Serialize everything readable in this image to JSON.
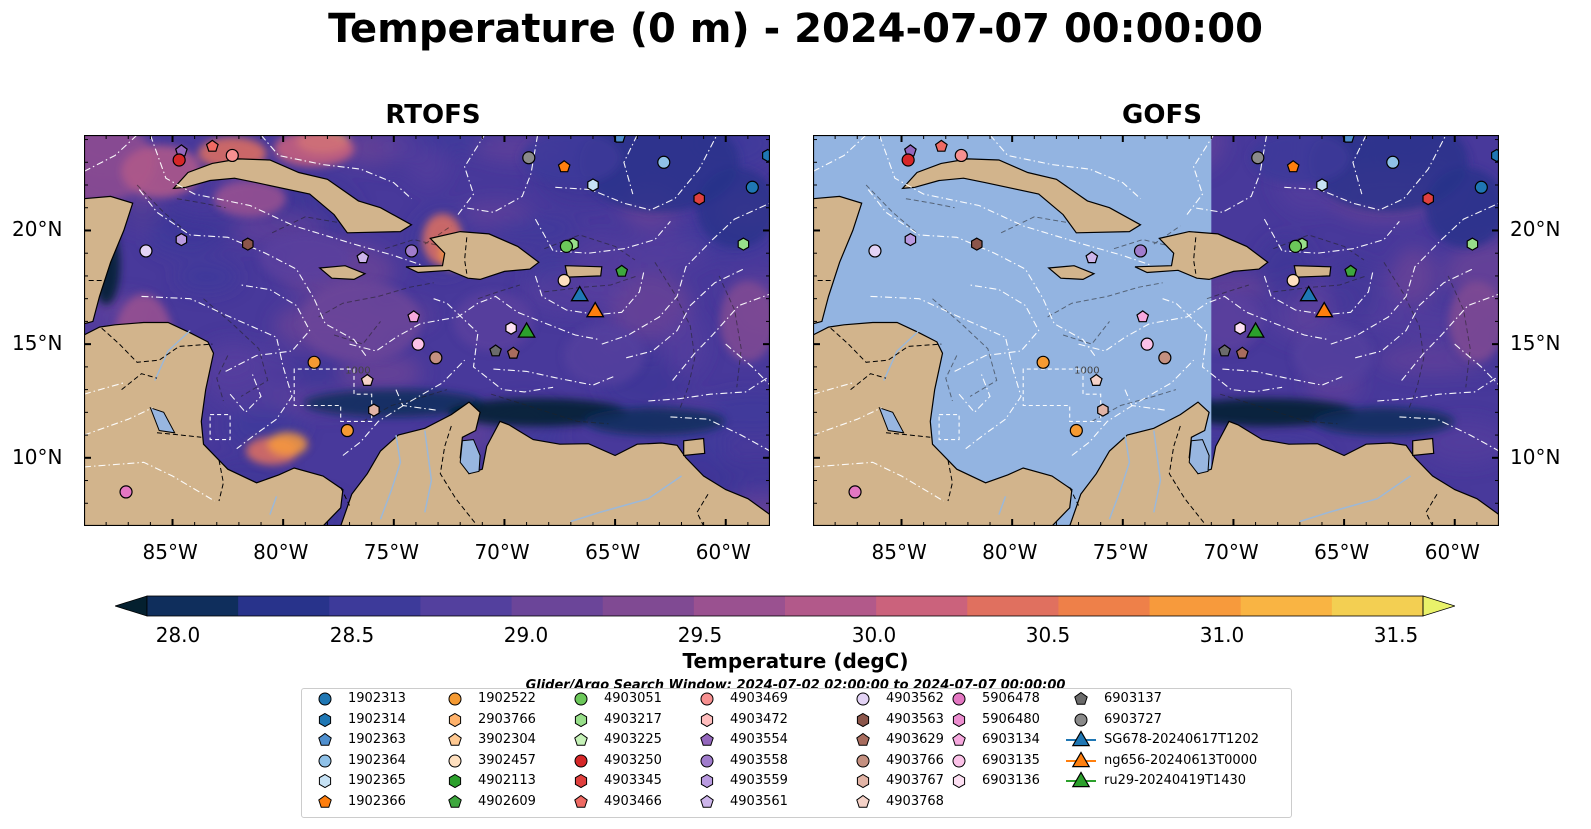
{
  "figure": {
    "suptitle": "Temperature (0 m) - 2024-07-07 00:00:00",
    "panels": [
      {
        "id": "rtofs",
        "title": "RTOFS"
      },
      {
        "id": "gofs",
        "title": "GOFS"
      }
    ],
    "lon_ticks": [
      "85°W",
      "80°W",
      "75°W",
      "70°W",
      "65°W",
      "60°W"
    ],
    "lat_ticks": [
      "20°N",
      "15°N",
      "10°N"
    ],
    "extent": {
      "lon": [
        -89,
        -58
      ],
      "lat": [
        7,
        24.2
      ]
    },
    "contour_label": "1000"
  },
  "colorbar": {
    "label": "Temperature (degC)",
    "ticks": [
      "28.0",
      "28.5",
      "29.0",
      "29.5",
      "30.0",
      "30.5",
      "31.0",
      "31.5"
    ],
    "range": [
      28.0,
      31.5
    ],
    "extend": "both",
    "cmap": "thermal",
    "colors": [
      "#04202f",
      "#0f2e5c",
      "#28338b",
      "#3d3a9a",
      "#53409e",
      "#6b4599",
      "#804a93",
      "#9a5190",
      "#b2598a",
      "#cb627c",
      "#e0705f",
      "#ee8049",
      "#f79a3c",
      "#f9b443",
      "#f3cf52",
      "#e9f26a"
    ]
  },
  "search_window": "Glider/Argo Search Window: 2024-07-02 02:00:00 to 2024-07-07 00:00:00",
  "legend": {
    "columns": [
      [
        {
          "label": "1902313",
          "marker": "circle",
          "color": "#1f77b4"
        },
        {
          "label": "1902314",
          "marker": "hexagon",
          "color": "#1f77b4"
        },
        {
          "label": "1902363",
          "marker": "pentagon",
          "color": "#4f8fce"
        },
        {
          "label": "1902364",
          "marker": "circle",
          "color": "#8fc1e8"
        },
        {
          "label": "1902365",
          "marker": "hexagon",
          "color": "#c6e2f5"
        },
        {
          "label": "1902366",
          "marker": "pentagon",
          "color": "#ff7f0e"
        }
      ],
      [
        {
          "label": "1902522",
          "marker": "circle",
          "color": "#f59a32"
        },
        {
          "label": "2903766",
          "marker": "hexagon",
          "color": "#ffb26b"
        },
        {
          "label": "3902304",
          "marker": "pentagon",
          "color": "#ffc992"
        },
        {
          "label": "3902457",
          "marker": "circle",
          "color": "#ffe0bf"
        },
        {
          "label": "4902113",
          "marker": "hexagon",
          "color": "#2ca02c"
        },
        {
          "label": "4902609",
          "marker": "pentagon",
          "color": "#3ea73e"
        }
      ],
      [
        {
          "label": "4903051",
          "marker": "circle",
          "color": "#6cc85a"
        },
        {
          "label": "4903217",
          "marker": "hexagon",
          "color": "#98df8a"
        },
        {
          "label": "4903225",
          "marker": "pentagon",
          "color": "#c6f2b8"
        },
        {
          "label": "4903250",
          "marker": "circle",
          "color": "#d62728"
        },
        {
          "label": "4903345",
          "marker": "hexagon",
          "color": "#e0403e"
        },
        {
          "label": "4903466",
          "marker": "pentagon",
          "color": "#ef6a63"
        }
      ],
      [
        {
          "label": "4903469",
          "marker": "circle",
          "color": "#f79090"
        },
        {
          "label": "4903472",
          "marker": "hexagon",
          "color": "#ffbdbd"
        },
        {
          "label": "4903554",
          "marker": "pentagon",
          "color": "#9467bd"
        },
        {
          "label": "4903558",
          "marker": "circle",
          "color": "#a07ccc"
        },
        {
          "label": "4903559",
          "marker": "hexagon",
          "color": "#b99ae0"
        },
        {
          "label": "4903561",
          "marker": "pentagon",
          "color": "#cdb5eb"
        }
      ],
      [
        {
          "label": "4903562",
          "marker": "circle",
          "color": "#e3d3f5"
        },
        {
          "label": "4903563",
          "marker": "hexagon",
          "color": "#8c564b"
        },
        {
          "label": "4903629",
          "marker": "pentagon",
          "color": "#a86c5e"
        },
        {
          "label": "4903766",
          "marker": "circle",
          "color": "#c49080"
        },
        {
          "label": "4903767",
          "marker": "hexagon",
          "color": "#e2b4a6"
        },
        {
          "label": "4903768",
          "marker": "pentagon",
          "color": "#f5d2c8"
        }
      ],
      [
        {
          "label": "5906478",
          "marker": "circle",
          "color": "#e377c2"
        },
        {
          "label": "5906480",
          "marker": "hexagon",
          "color": "#ec8ed0"
        },
        {
          "label": "6903134",
          "marker": "pentagon",
          "color": "#f6a8de"
        },
        {
          "label": "6903135",
          "marker": "circle",
          "color": "#fbc2e8"
        },
        {
          "label": "6903136",
          "marker": "hexagon",
          "color": "#fde0f3"
        }
      ],
      [
        {
          "label": "6903137",
          "marker": "pentagon",
          "color": "#6b6b6b"
        },
        {
          "label": "6903727",
          "marker": "circle",
          "color": "#8a8a8a"
        },
        {
          "label": "SG678-20240617T1202",
          "marker": "triangle-line",
          "color": "#1f77b4"
        },
        {
          "label": "ng656-20240613T0000",
          "marker": "triangle-line",
          "color": "#ff7f0e"
        },
        {
          "label": "ru29-20240419T1430",
          "marker": "triangle-line",
          "color": "#2ca02c"
        }
      ]
    ]
  },
  "floats": [
    {
      "marker": "pentagon",
      "color": "#9467bd",
      "lon": -84.6,
      "lat": 23.5
    },
    {
      "marker": "circle",
      "color": "#d62728",
      "lon": -84.7,
      "lat": 23.1
    },
    {
      "marker": "pentagon",
      "color": "#ef6a63",
      "lon": -83.2,
      "lat": 23.7
    },
    {
      "marker": "circle",
      "color": "#f79090",
      "lon": -82.3,
      "lat": 23.3
    },
    {
      "marker": "circle",
      "color": "#e3d3f5",
      "lon": -86.2,
      "lat": 19.1
    },
    {
      "marker": "hexagon",
      "color": "#b99ae0",
      "lon": -84.6,
      "lat": 19.6
    },
    {
      "marker": "hexagon",
      "color": "#8c564b",
      "lon": -81.6,
      "lat": 19.4
    },
    {
      "marker": "pentagon",
      "color": "#cdb5eb",
      "lon": -76.4,
      "lat": 18.8
    },
    {
      "marker": "circle",
      "color": "#a07ccc",
      "lon": -74.2,
      "lat": 19.1
    },
    {
      "marker": "circle",
      "color": "#8a8a8a",
      "lon": -68.9,
      "lat": 23.2
    },
    {
      "marker": "pentagon",
      "color": "#ff7f0e",
      "lon": -67.3,
      "lat": 22.8
    },
    {
      "marker": "pentagon",
      "color": "#4f8fce",
      "lon": -64.8,
      "lat": 24.1
    },
    {
      "marker": "circle",
      "color": "#8fc1e8",
      "lon": -62.8,
      "lat": 23.0
    },
    {
      "marker": "hexagon",
      "color": "#c6e2f5",
      "lon": -66.0,
      "lat": 22.0
    },
    {
      "marker": "circle",
      "color": "#1f77b4",
      "lon": -58.8,
      "lat": 21.9
    },
    {
      "marker": "hexagon",
      "color": "#e0403e",
      "lon": -61.2,
      "lat": 21.4
    },
    {
      "marker": "hexagon",
      "color": "#1f77b4",
      "lon": -58.1,
      "lat": 23.3
    },
    {
      "marker": "hexagon",
      "color": "#98df8a",
      "lon": -66.9,
      "lat": 19.4
    },
    {
      "marker": "circle",
      "color": "#6cc85a",
      "lon": -67.2,
      "lat": 19.3
    },
    {
      "marker": "hexagon",
      "color": "#98df8a",
      "lon": -59.2,
      "lat": 19.4
    },
    {
      "marker": "pentagon",
      "color": "#3ea73e",
      "lon": -64.7,
      "lat": 18.2
    },
    {
      "marker": "circle",
      "color": "#ffe0bf",
      "lon": -67.3,
      "lat": 17.8
    },
    {
      "marker": "pentagon",
      "color": "#f6a8de",
      "lon": -74.1,
      "lat": 16.2
    },
    {
      "marker": "circle",
      "color": "#fbc2e8",
      "lon": -73.9,
      "lat": 15.0
    },
    {
      "marker": "circle",
      "color": "#c49080",
      "lon": -73.1,
      "lat": 14.4
    },
    {
      "marker": "hexagon",
      "color": "#fde0f3",
      "lon": -69.7,
      "lat": 15.7
    },
    {
      "marker": "pentagon",
      "color": "#6b6b6b",
      "lon": -70.4,
      "lat": 14.7
    },
    {
      "marker": "pentagon",
      "color": "#a86c5e",
      "lon": -69.6,
      "lat": 14.6
    },
    {
      "marker": "circle",
      "color": "#f59a32",
      "lon": -78.6,
      "lat": 14.2
    },
    {
      "marker": "pentagon",
      "color": "#f5d2c8",
      "lon": -76.2,
      "lat": 13.4
    },
    {
      "marker": "hexagon",
      "color": "#e2b4a6",
      "lon": -75.9,
      "lat": 12.1
    },
    {
      "marker": "circle",
      "color": "#f59a32",
      "lon": -77.1,
      "lat": 11.2
    },
    {
      "marker": "circle",
      "color": "#e377c2",
      "lon": -87.1,
      "lat": 8.5
    }
  ],
  "gliders": [
    {
      "name": "SG678-20240617T1202",
      "color": "#1f77b4",
      "lon": -66.6,
      "lat": 17.2
    },
    {
      "name": "ng656-20240613T0000",
      "color": "#ff7f0e",
      "lon": -65.9,
      "lat": 16.5
    },
    {
      "name": "ru29-20240419T1430",
      "color": "#2ca02c",
      "lon": -69.0,
      "lat": 15.6
    }
  ]
}
